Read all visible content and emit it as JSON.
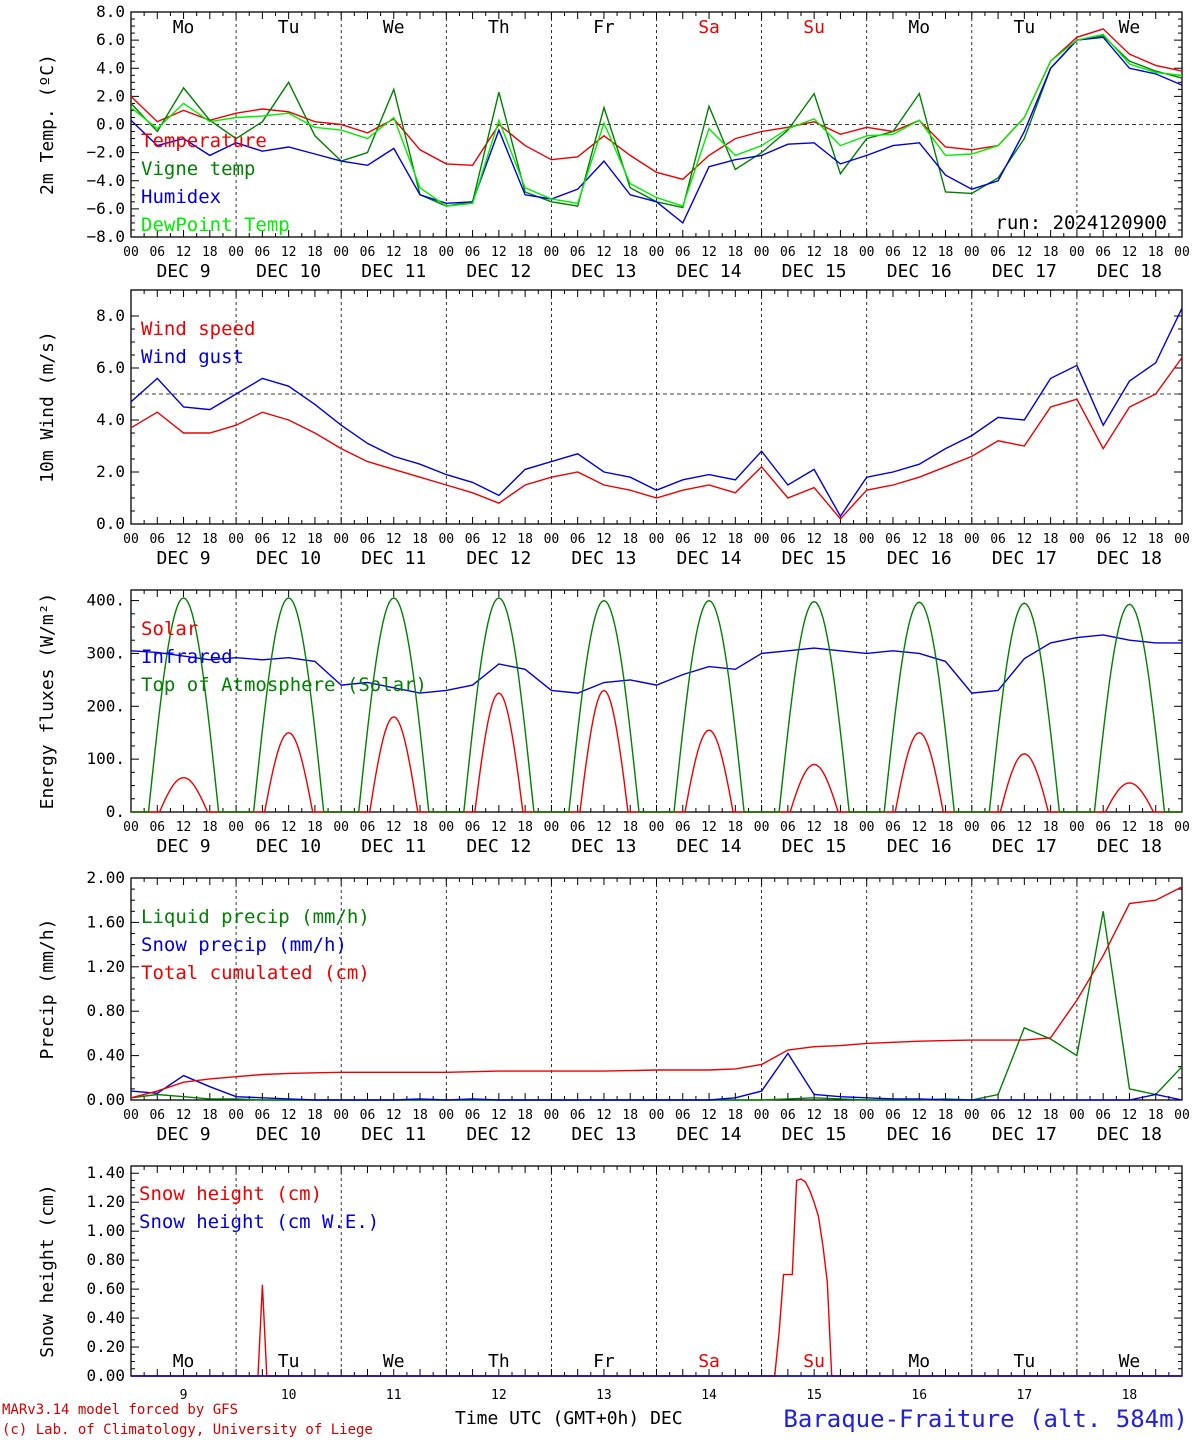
{
  "colors": {
    "red": "#ee0000",
    "green": "#008000",
    "blue": "#0000dd",
    "lightgreen": "#00ee00",
    "saturday": "#ee0000"
  },
  "days": [
    "Mo",
    "Tu",
    "We",
    "Th",
    "Fr",
    "Sa",
    "Su",
    "Mo",
    "Tu",
    "We"
  ],
  "hour_labels": [
    "00",
    "06",
    "12",
    "18"
  ],
  "last_hour_label": "00",
  "dates": [
    "DEC  9",
    "DEC 10",
    "DEC 11",
    "DEC 12",
    "DEC 13",
    "DEC 14",
    "DEC 15",
    "DEC 16",
    "DEC 17",
    "DEC 18"
  ],
  "bottom_day_numbers": [
    "9",
    "10",
    "11",
    "12",
    "13",
    "14",
    "15",
    "16",
    "17",
    "18"
  ],
  "time_axis_label": "Time UTC (GMT+0h) DEC",
  "station": "Baraque-Fraiture (alt. 584m)",
  "footer": [
    "MARv3.14 model forced by GFS",
    "(c) Lab. of Climatology, University of Liege"
  ],
  "run_label": "run: 2024120900",
  "chart_data": [
    {
      "type": "line",
      "ylabel": "2m Temp. (ºC)",
      "ylim": [
        -8,
        8
      ],
      "yticks": [
        "8.0",
        "6.0",
        "4.0",
        "2.0",
        "0.0",
        "−2.0",
        "−4.0",
        "−6.0",
        "−8.0"
      ],
      "ref_line": 0,
      "x_hours": [
        0,
        6,
        12,
        18,
        24,
        30,
        36,
        42,
        48,
        54,
        60,
        66,
        72,
        78,
        84,
        90,
        96,
        102,
        108,
        114,
        120,
        126,
        132,
        138,
        144,
        150,
        156,
        162,
        168,
        174,
        180,
        186,
        192,
        198,
        204,
        210,
        216,
        222,
        228,
        234,
        240
      ],
      "series": [
        {
          "name": "Temperature",
          "color": "red",
          "values": [
            2.0,
            0.2,
            1.0,
            0.3,
            0.8,
            1.1,
            0.9,
            0.2,
            0.0,
            -0.6,
            0.4,
            -1.8,
            -2.8,
            -2.9,
            0.0,
            -1.5,
            -2.5,
            -2.3,
            -0.8,
            -2.2,
            -3.4,
            -3.9,
            -2.2,
            -1.0,
            -0.5,
            -0.2,
            0.2,
            -0.7,
            -0.2,
            -0.5,
            0.3,
            -1.6,
            -1.8,
            -1.5,
            0.5,
            4.5,
            6.2,
            6.8,
            5.0,
            4.2,
            3.8
          ]
        },
        {
          "name": "Vigne temp",
          "color": "green",
          "values": [
            1.5,
            -0.5,
            2.6,
            0.3,
            -1.0,
            0.2,
            3.0,
            -0.8,
            -2.6,
            -2.0,
            2.5,
            -5.0,
            -5.8,
            -5.5,
            2.3,
            -4.8,
            -5.5,
            -5.8,
            1.2,
            -4.5,
            -5.5,
            -5.9,
            1.3,
            -3.2,
            -2.0,
            -0.4,
            2.2,
            -3.5,
            -1.0,
            -0.5,
            2.2,
            -4.8,
            -4.9,
            -3.8,
            -1.0,
            4.0,
            6.0,
            6.3,
            4.5,
            3.8,
            3.3
          ]
        },
        {
          "name": "Humidex",
          "color": "blue",
          "values": [
            0.3,
            -1.5,
            -1.0,
            -2.2,
            -1.3,
            -1.9,
            -1.6,
            -2.1,
            -2.6,
            -2.9,
            -1.7,
            -5.0,
            -5.6,
            -5.5,
            -0.4,
            -5.0,
            -5.3,
            -4.6,
            -2.6,
            -5.0,
            -5.5,
            -7.0,
            -3.0,
            -2.5,
            -2.2,
            -1.4,
            -1.3,
            -2.8,
            -2.2,
            -1.5,
            -1.3,
            -3.6,
            -4.6,
            -4.0,
            -0.5,
            4.0,
            6.0,
            6.2,
            4.0,
            3.6,
            2.8
          ]
        },
        {
          "name": "DewPoint Temp",
          "color": "lightgreen",
          "values": [
            1.2,
            -0.3,
            1.5,
            0.2,
            0.5,
            0.6,
            0.8,
            -0.2,
            -0.4,
            -1.0,
            0.5,
            -4.5,
            -5.8,
            -5.6,
            0.3,
            -4.5,
            -5.3,
            -5.6,
            0.1,
            -4.2,
            -5.2,
            -5.8,
            -0.3,
            -2.2,
            -1.5,
            -0.3,
            0.4,
            -1.5,
            -0.8,
            -0.7,
            0.3,
            -2.2,
            -2.1,
            -1.5,
            0.5,
            4.5,
            6.0,
            6.4,
            4.3,
            3.7,
            3.5
          ]
        }
      ]
    },
    {
      "type": "line",
      "ylabel": "10m Wind (m/s)",
      "ylim": [
        0,
        9
      ],
      "yticks": [
        "8.0",
        "6.0",
        "4.0",
        "2.0",
        "0.0"
      ],
      "ref_line": 5,
      "x_hours": [
        0,
        6,
        12,
        18,
        24,
        30,
        36,
        42,
        48,
        54,
        60,
        66,
        72,
        78,
        84,
        90,
        96,
        102,
        108,
        114,
        120,
        126,
        132,
        138,
        144,
        150,
        156,
        162,
        168,
        174,
        180,
        186,
        192,
        198,
        204,
        210,
        216,
        222,
        228,
        234,
        240
      ],
      "series": [
        {
          "name": "Wind speed",
          "color": "red",
          "values": [
            3.7,
            4.3,
            3.5,
            3.5,
            3.8,
            4.3,
            4.0,
            3.5,
            2.9,
            2.4,
            2.1,
            1.8,
            1.5,
            1.2,
            0.8,
            1.5,
            1.8,
            2.0,
            1.5,
            1.3,
            1.0,
            1.3,
            1.5,
            1.2,
            2.2,
            1.0,
            1.4,
            0.2,
            1.3,
            1.5,
            1.8,
            2.2,
            2.6,
            3.2,
            3.0,
            4.5,
            4.8,
            2.9,
            4.5,
            5.0,
            6.4
          ]
        },
        {
          "name": "Wind gust",
          "color": "blue",
          "values": [
            4.7,
            5.6,
            4.5,
            4.4,
            5.0,
            5.6,
            5.3,
            4.6,
            3.8,
            3.1,
            2.6,
            2.3,
            1.9,
            1.6,
            1.1,
            2.1,
            2.4,
            2.7,
            2.0,
            1.8,
            1.3,
            1.7,
            1.9,
            1.7,
            2.8,
            1.5,
            2.1,
            0.3,
            1.8,
            2.0,
            2.3,
            2.9,
            3.4,
            4.1,
            4.0,
            5.6,
            6.1,
            3.8,
            5.5,
            6.2,
            8.3
          ]
        }
      ]
    },
    {
      "type": "line",
      "ylabel": "Energy fluxes (W/m²)",
      "ylim": [
        0,
        420
      ],
      "yticks": [
        "400.",
        "300.",
        "200.",
        "100.",
        "0."
      ],
      "series": [
        {
          "name": "Solar",
          "color": "red",
          "peaks": [
            65,
            150,
            180,
            225,
            230,
            155,
            90,
            150,
            110,
            55
          ]
        },
        {
          "name": "Infrared",
          "color": "blue",
          "x_hours": [
            0,
            6,
            12,
            18,
            24,
            30,
            36,
            42,
            48,
            54,
            60,
            66,
            72,
            78,
            84,
            90,
            96,
            102,
            108,
            114,
            120,
            126,
            132,
            138,
            144,
            150,
            156,
            162,
            168,
            174,
            180,
            186,
            192,
            198,
            204,
            210,
            216,
            222,
            228,
            234,
            240
          ],
          "values": [
            305,
            302,
            295,
            288,
            292,
            288,
            292,
            285,
            240,
            245,
            235,
            225,
            230,
            240,
            280,
            270,
            230,
            225,
            245,
            250,
            240,
            260,
            275,
            270,
            300,
            305,
            310,
            305,
            300,
            305,
            300,
            285,
            225,
            230,
            290,
            320,
            330,
            335,
            325,
            320,
            320
          ]
        },
        {
          "name": "Top of Atmosphere (Solar)",
          "color": "green",
          "peaks": [
            405,
            405,
            405,
            405,
            400,
            400,
            398,
            397,
            395,
            393
          ]
        }
      ]
    },
    {
      "type": "line",
      "ylabel": "Precip (mm/h)",
      "ylim": [
        0,
        2
      ],
      "yticks": [
        "2.00",
        "1.60",
        "1.20",
        "0.80",
        "0.40",
        "0.00"
      ],
      "series": [
        {
          "name": "Liquid precip (mm/h)",
          "color": "green",
          "x_hours": [
            0,
            6,
            12,
            18,
            24,
            30,
            36,
            42,
            48,
            54,
            60,
            66,
            72,
            78,
            84,
            90,
            96,
            102,
            108,
            114,
            120,
            126,
            132,
            138,
            144,
            150,
            156,
            162,
            168,
            174,
            180,
            186,
            192,
            198,
            204,
            210,
            216,
            222,
            228,
            234,
            240
          ],
          "values": [
            0.02,
            0.05,
            0.03,
            0.01,
            0.01,
            0.0,
            0.0,
            0.0,
            0.0,
            0.0,
            0.0,
            0.0,
            0.0,
            0.0,
            0.0,
            0.0,
            0.0,
            0.0,
            0.0,
            0.0,
            0.0,
            0.0,
            0.0,
            0.0,
            0.0,
            0.01,
            0.02,
            0.01,
            0.0,
            0.0,
            0.0,
            0.01,
            0.0,
            0.05,
            0.65,
            0.55,
            0.4,
            1.7,
            0.1,
            0.05,
            0.3
          ]
        },
        {
          "name": "Snow precip (mm/h)",
          "color": "blue",
          "x_hours": [
            0,
            6,
            12,
            18,
            24,
            30,
            36,
            42,
            48,
            54,
            60,
            66,
            72,
            78,
            84,
            90,
            96,
            102,
            108,
            114,
            120,
            126,
            132,
            138,
            144,
            150,
            156,
            162,
            168,
            174,
            180,
            186,
            192,
            198,
            204,
            210,
            216,
            222,
            228,
            234,
            240
          ],
          "values": [
            0.08,
            0.06,
            0.22,
            0.12,
            0.03,
            0.02,
            0.01,
            0.0,
            0.0,
            0.0,
            0.0,
            0.01,
            0.0,
            0.01,
            0.0,
            0.0,
            0.0,
            0.0,
            0.0,
            0.0,
            0.0,
            0.0,
            0.0,
            0.02,
            0.08,
            0.42,
            0.05,
            0.03,
            0.02,
            0.01,
            0.01,
            0.0,
            0.0,
            0.0,
            0.0,
            0.0,
            0.0,
            0.0,
            0.0,
            0.05,
            0.0
          ]
        },
        {
          "name": "Total cumulated (cm)",
          "color": "red",
          "x_hours": [
            0,
            6,
            12,
            18,
            24,
            30,
            36,
            42,
            48,
            54,
            60,
            66,
            72,
            78,
            84,
            90,
            96,
            102,
            108,
            114,
            120,
            126,
            132,
            138,
            144,
            150,
            156,
            162,
            168,
            174,
            180,
            186,
            192,
            198,
            204,
            210,
            216,
            222,
            228,
            234,
            240
          ],
          "values": [
            0.02,
            0.08,
            0.16,
            0.19,
            0.21,
            0.23,
            0.24,
            0.245,
            0.25,
            0.25,
            0.25,
            0.25,
            0.25,
            0.255,
            0.26,
            0.26,
            0.26,
            0.26,
            0.26,
            0.265,
            0.27,
            0.27,
            0.27,
            0.28,
            0.32,
            0.45,
            0.48,
            0.49,
            0.51,
            0.52,
            0.53,
            0.535,
            0.54,
            0.54,
            0.54,
            0.56,
            0.9,
            1.3,
            1.77,
            1.8,
            1.92
          ]
        }
      ]
    },
    {
      "type": "line",
      "ylabel": "Snow height (cm)",
      "ylim": [
        0,
        1.45
      ],
      "yticks": [
        "1.40",
        "1.20",
        "1.00",
        "0.80",
        "0.60",
        "0.40",
        "0.20",
        "0.00"
      ],
      "series": [
        {
          "name": "Snow height (cm)",
          "color": "red",
          "x_hours": [
            0,
            29,
            30,
            31,
            32,
            147,
            148,
            149,
            150,
            151,
            152,
            153,
            154,
            155,
            156,
            157,
            158,
            159,
            160,
            161,
            162,
            240
          ],
          "values": [
            0,
            0,
            0.63,
            0.0,
            0,
            0,
            0.3,
            0.7,
            0.7,
            0.7,
            1.35,
            1.36,
            1.34,
            1.28,
            1.2,
            1.1,
            0.9,
            0.65,
            0.0,
            0,
            0,
            0
          ]
        },
        {
          "name": "Snow height (cm W.E.)",
          "color": "blue",
          "x_hours": [
            0,
            240
          ],
          "values": [
            0,
            0
          ]
        }
      ]
    }
  ]
}
